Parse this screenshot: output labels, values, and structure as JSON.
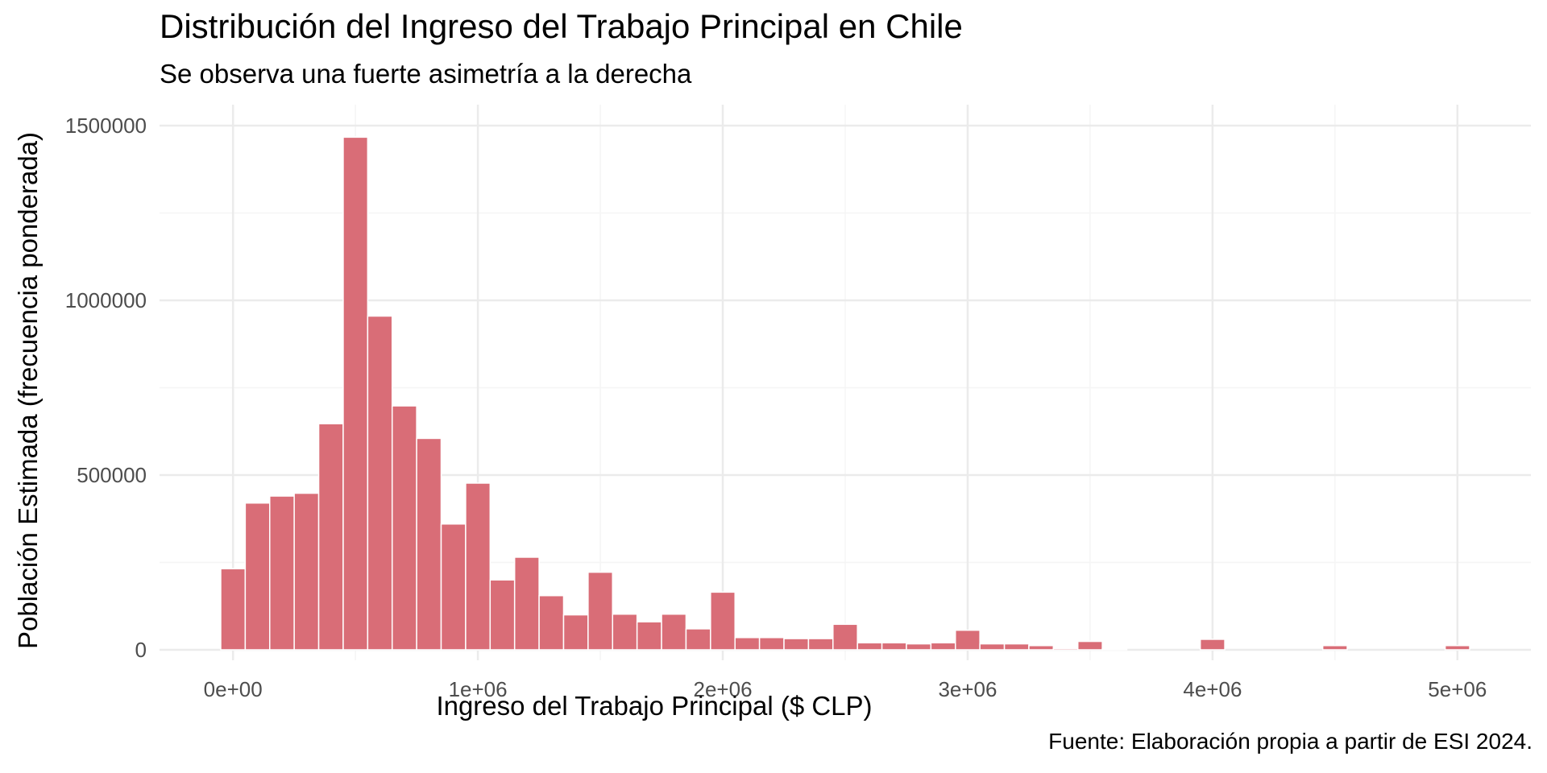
{
  "chart_data": {
    "type": "bar",
    "title": "Distribución del Ingreso del Trabajo Principal en Chile",
    "subtitle": "Se observa una fuerte asimetría a la derecha",
    "caption": "Fuente: Elaboración propia a partir de ESI 2024.",
    "xlabel": "Ingreso del Trabajo Principal ($ CLP)",
    "ylabel": "Población Estimada (frecuencia ponderada)",
    "bin_width": 100000,
    "bin_centers": [
      0,
      100000,
      200000,
      300000,
      400000,
      500000,
      600000,
      700000,
      800000,
      900000,
      1000000,
      1100000,
      1200000,
      1300000,
      1400000,
      1500000,
      1600000,
      1700000,
      1800000,
      1900000,
      2000000,
      2100000,
      2200000,
      2300000,
      2400000,
      2500000,
      2600000,
      2700000,
      2800000,
      2900000,
      3000000,
      3100000,
      3200000,
      3300000,
      3400000,
      3500000,
      3600000,
      3700000,
      3800000,
      3900000,
      4000000,
      4100000,
      4200000,
      4300000,
      4400000,
      4500000,
      4600000,
      4700000,
      4800000,
      4900000,
      5000000
    ],
    "values": [
      232000,
      420000,
      440000,
      448000,
      647000,
      1467000,
      955000,
      698000,
      605000,
      360000,
      477000,
      200000,
      265000,
      155000,
      100000,
      222000,
      102000,
      80000,
      102000,
      60000,
      165000,
      35000,
      35000,
      32000,
      32000,
      73000,
      20000,
      20000,
      17000,
      20000,
      56000,
      17000,
      17000,
      12000,
      4000,
      24000,
      3000,
      0,
      0,
      0,
      30000,
      0,
      0,
      0,
      0,
      12000,
      0,
      0,
      0,
      0,
      12000
    ],
    "xlim": [
      -300000,
      5300000
    ],
    "ylim": [
      -30000,
      1560000
    ],
    "x_ticks": [
      0,
      1000000,
      2000000,
      3000000,
      4000000,
      5000000
    ],
    "x_tick_labels": [
      "0e+00",
      "1e+06",
      "2e+06",
      "3e+06",
      "4e+06",
      "5e+06"
    ],
    "y_ticks": [
      0,
      500000,
      1000000,
      1500000
    ],
    "y_tick_labels": [
      "0",
      "500000",
      "1000000",
      "1500000"
    ],
    "grid": true,
    "bar_color": "#d96d77",
    "bar_edge_color": "#ffffff",
    "grid_major_color": "#ebebeb",
    "grid_minor_color": "#f5f5f5",
    "tick_label_color": "#4d4d4d"
  }
}
